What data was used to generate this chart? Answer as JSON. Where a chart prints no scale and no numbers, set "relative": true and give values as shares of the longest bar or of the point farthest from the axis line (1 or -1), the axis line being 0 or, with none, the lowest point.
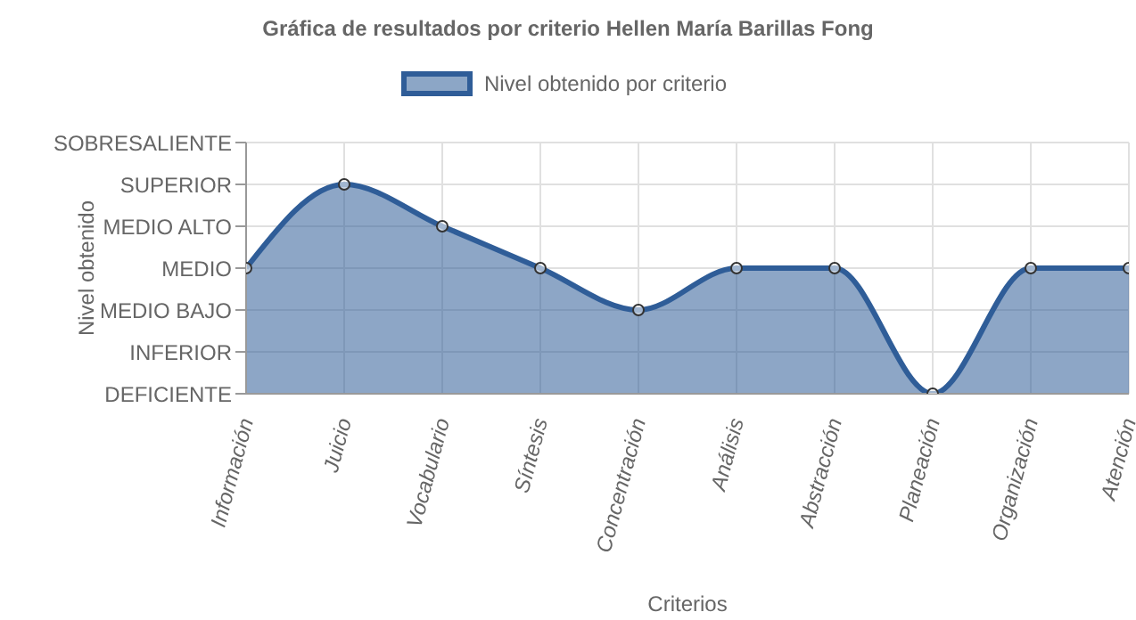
{
  "chart_data": {
    "type": "area",
    "title": "Gráfica de resultados por criterio Hellen María Barillas Fong",
    "xlabel": "Criterios",
    "ylabel": "Nivel obtenido",
    "categories": [
      "Información",
      "Juicio",
      "Vocabulario",
      "Síntesis",
      "Concentración",
      "Análisis",
      "Abstracción",
      "Planeación",
      "Organización",
      "Atención"
    ],
    "y_categories": [
      "SOBRESALIENTE",
      "SUPERIOR",
      "MEDIO ALTO",
      "MEDIO",
      "MEDIO BAJO",
      "INFERIOR",
      "DEFICIENTE"
    ],
    "relative": true,
    "series": [
      {
        "name": "Nivel obtenido por criterio",
        "color": "#2f5d98",
        "values": [
          0.6,
          1,
          0.8,
          0.6,
          0.4,
          0.6,
          0.6,
          0,
          0.6,
          0.6
        ]
      }
    ],
    "grid": true,
    "legend": "top",
    "marker": "circle",
    "line_style": "solid"
  }
}
